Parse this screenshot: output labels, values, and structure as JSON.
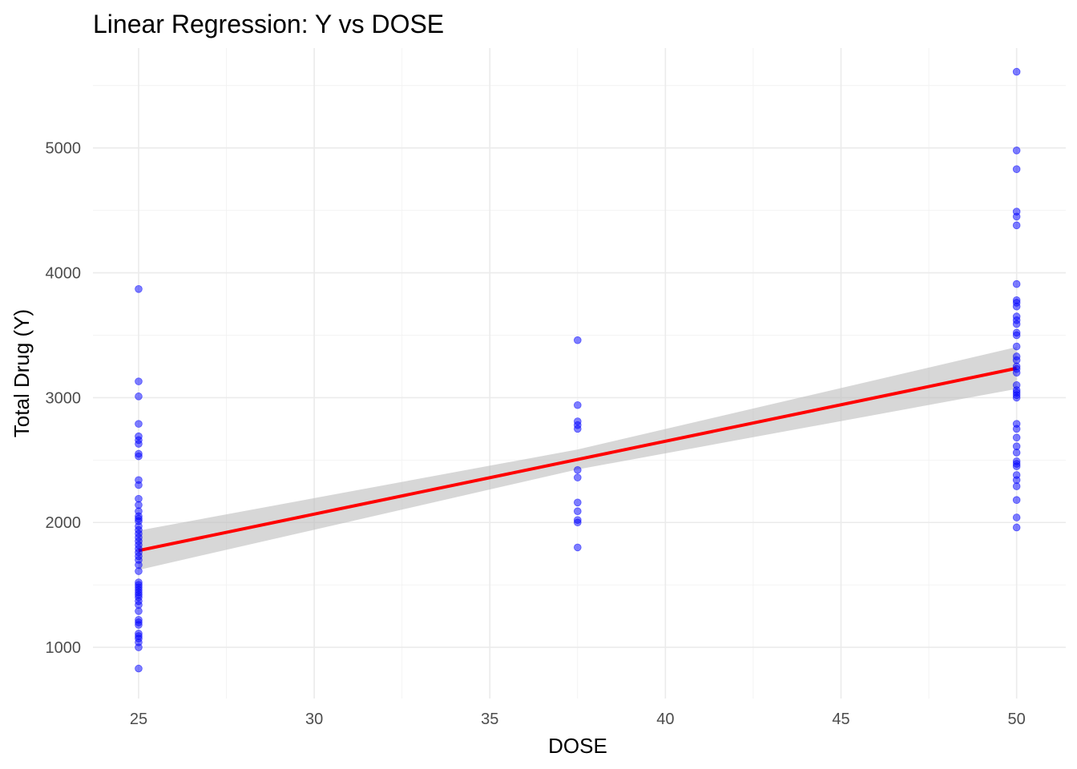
{
  "chart_data": {
    "type": "scatter",
    "title": "Linear Regression: Y vs DOSE",
    "xlabel": "DOSE",
    "ylabel": "Total Drug (Y)",
    "xlim": [
      23.7,
      51.4
    ],
    "ylim": [
      590,
      5800
    ],
    "x_ticks": [
      25,
      30,
      35,
      40,
      45,
      50
    ],
    "x_tick_labels": [
      "25",
      "30",
      "35",
      "40",
      "45",
      "50"
    ],
    "y_ticks": [
      1000,
      2000,
      3000,
      4000,
      5000
    ],
    "y_tick_labels": [
      "1000",
      "2000",
      "3000",
      "4000",
      "5000"
    ],
    "grid": true,
    "legend": "none",
    "colors": {
      "points": "#0000ff",
      "fit_line": "#ff0000",
      "confidence_band": "#bebebe"
    },
    "series": [
      {
        "kind": "points",
        "points": [
          {
            "x": 25,
            "y": 3870
          },
          {
            "x": 25,
            "y": 3130
          },
          {
            "x": 25,
            "y": 3010
          },
          {
            "x": 25,
            "y": 2790
          },
          {
            "x": 25,
            "y": 2690
          },
          {
            "x": 25,
            "y": 2660
          },
          {
            "x": 25,
            "y": 2630
          },
          {
            "x": 25,
            "y": 2550
          },
          {
            "x": 25,
            "y": 2530
          },
          {
            "x": 25,
            "y": 2340
          },
          {
            "x": 25,
            "y": 2300
          },
          {
            "x": 25,
            "y": 2190
          },
          {
            "x": 25,
            "y": 2140
          },
          {
            "x": 25,
            "y": 2090
          },
          {
            "x": 25,
            "y": 2050
          },
          {
            "x": 25,
            "y": 2030
          },
          {
            "x": 25,
            "y": 2010
          },
          {
            "x": 25,
            "y": 1970
          },
          {
            "x": 25,
            "y": 1940
          },
          {
            "x": 25,
            "y": 1910
          },
          {
            "x": 25,
            "y": 1880
          },
          {
            "x": 25,
            "y": 1850
          },
          {
            "x": 25,
            "y": 1820
          },
          {
            "x": 25,
            "y": 1790
          },
          {
            "x": 25,
            "y": 1760
          },
          {
            "x": 25,
            "y": 1730
          },
          {
            "x": 25,
            "y": 1700
          },
          {
            "x": 25,
            "y": 1660
          },
          {
            "x": 25,
            "y": 1610
          },
          {
            "x": 25,
            "y": 1520
          },
          {
            "x": 25,
            "y": 1500
          },
          {
            "x": 25,
            "y": 1480
          },
          {
            "x": 25,
            "y": 1460
          },
          {
            "x": 25,
            "y": 1440
          },
          {
            "x": 25,
            "y": 1420
          },
          {
            "x": 25,
            "y": 1400
          },
          {
            "x": 25,
            "y": 1370
          },
          {
            "x": 25,
            "y": 1340
          },
          {
            "x": 25,
            "y": 1290
          },
          {
            "x": 25,
            "y": 1220
          },
          {
            "x": 25,
            "y": 1200
          },
          {
            "x": 25,
            "y": 1180
          },
          {
            "x": 25,
            "y": 1110
          },
          {
            "x": 25,
            "y": 1090
          },
          {
            "x": 25,
            "y": 1070
          },
          {
            "x": 25,
            "y": 1040
          },
          {
            "x": 25,
            "y": 1000
          },
          {
            "x": 25,
            "y": 830
          },
          {
            "x": 37.5,
            "y": 3460
          },
          {
            "x": 37.5,
            "y": 2940
          },
          {
            "x": 37.5,
            "y": 2810
          },
          {
            "x": 37.5,
            "y": 2780
          },
          {
            "x": 37.5,
            "y": 2750
          },
          {
            "x": 37.5,
            "y": 2420
          },
          {
            "x": 37.5,
            "y": 2360
          },
          {
            "x": 37.5,
            "y": 2160
          },
          {
            "x": 37.5,
            "y": 2090
          },
          {
            "x": 37.5,
            "y": 2020
          },
          {
            "x": 37.5,
            "y": 2000
          },
          {
            "x": 37.5,
            "y": 1800
          },
          {
            "x": 50,
            "y": 5610
          },
          {
            "x": 50,
            "y": 4980
          },
          {
            "x": 50,
            "y": 4830
          },
          {
            "x": 50,
            "y": 4490
          },
          {
            "x": 50,
            "y": 4450
          },
          {
            "x": 50,
            "y": 4380
          },
          {
            "x": 50,
            "y": 3910
          },
          {
            "x": 50,
            "y": 3780
          },
          {
            "x": 50,
            "y": 3760
          },
          {
            "x": 50,
            "y": 3730
          },
          {
            "x": 50,
            "y": 3650
          },
          {
            "x": 50,
            "y": 3620
          },
          {
            "x": 50,
            "y": 3590
          },
          {
            "x": 50,
            "y": 3520
          },
          {
            "x": 50,
            "y": 3500
          },
          {
            "x": 50,
            "y": 3410
          },
          {
            "x": 50,
            "y": 3330
          },
          {
            "x": 50,
            "y": 3300
          },
          {
            "x": 50,
            "y": 3250
          },
          {
            "x": 50,
            "y": 3230
          },
          {
            "x": 50,
            "y": 3200
          },
          {
            "x": 50,
            "y": 3100
          },
          {
            "x": 50,
            "y": 3060
          },
          {
            "x": 50,
            "y": 3040
          },
          {
            "x": 50,
            "y": 3020
          },
          {
            "x": 50,
            "y": 3000
          },
          {
            "x": 50,
            "y": 2790
          },
          {
            "x": 50,
            "y": 2750
          },
          {
            "x": 50,
            "y": 2680
          },
          {
            "x": 50,
            "y": 2610
          },
          {
            "x": 50,
            "y": 2560
          },
          {
            "x": 50,
            "y": 2490
          },
          {
            "x": 50,
            "y": 2470
          },
          {
            "x": 50,
            "y": 2450
          },
          {
            "x": 50,
            "y": 2380
          },
          {
            "x": 50,
            "y": 2340
          },
          {
            "x": 50,
            "y": 2290
          },
          {
            "x": 50,
            "y": 2180
          },
          {
            "x": 50,
            "y": 2040
          },
          {
            "x": 50,
            "y": 1960
          }
        ]
      },
      {
        "kind": "regression_line",
        "x": [
          25,
          50
        ],
        "y": [
          1775,
          3235
        ]
      },
      {
        "kind": "confidence_band",
        "x": [
          25,
          37.5,
          50
        ],
        "lower": [
          1620,
          2425,
          3070
        ],
        "upper": [
          1935,
          2585,
          3405
        ]
      }
    ]
  }
}
